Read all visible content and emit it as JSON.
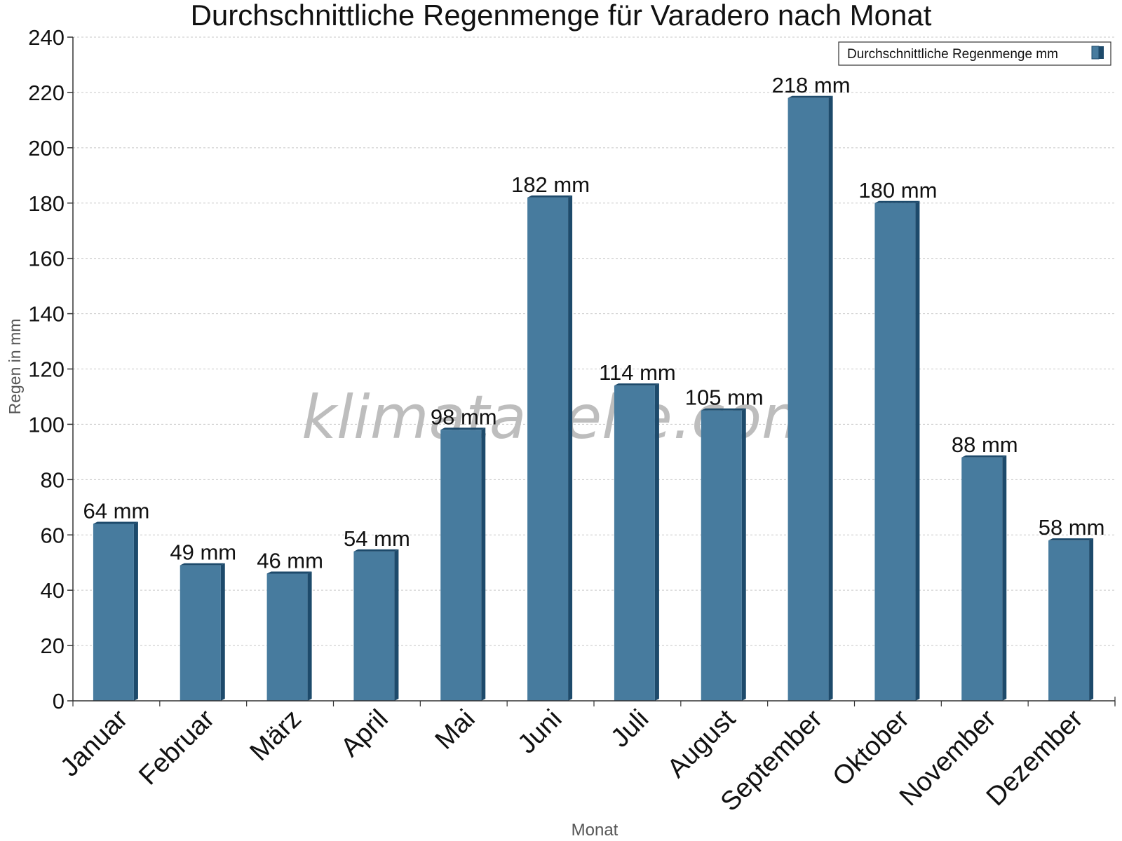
{
  "chart_data": {
    "type": "bar",
    "title": "Durchschnittliche Regenmenge für Varadero nach Monat",
    "xlabel": "Monat",
    "ylabel": "Regen in mm",
    "categories": [
      "Januar",
      "Februar",
      "März",
      "April",
      "Mai",
      "Juni",
      "Juli",
      "August",
      "September",
      "Oktober",
      "November",
      "Dezember"
    ],
    "series": [
      {
        "name": "Durchschnittliche Regenmenge mm",
        "values": [
          64,
          49,
          46,
          54,
          98,
          182,
          114,
          105,
          218,
          180,
          88,
          58
        ],
        "labels": [
          "64 mm",
          "49 mm",
          "46 mm",
          "54 mm",
          "98 mm",
          "182 mm",
          "114 mm",
          "105 mm",
          "218 mm",
          "180 mm",
          "88 mm",
          "58 mm"
        ],
        "color": "#477b9e"
      }
    ],
    "ylim": [
      0,
      240
    ],
    "yticks": [
      0,
      20,
      40,
      60,
      80,
      100,
      120,
      140,
      160,
      180,
      200,
      220,
      240
    ],
    "grid": true,
    "legend_position": "top-right"
  },
  "watermark": "klimatabelle.com",
  "colors": {
    "bar_front": "#477b9e",
    "bar_side": "#1d4a6b",
    "grid": "#c8c8c8",
    "axis": "#333333"
  }
}
